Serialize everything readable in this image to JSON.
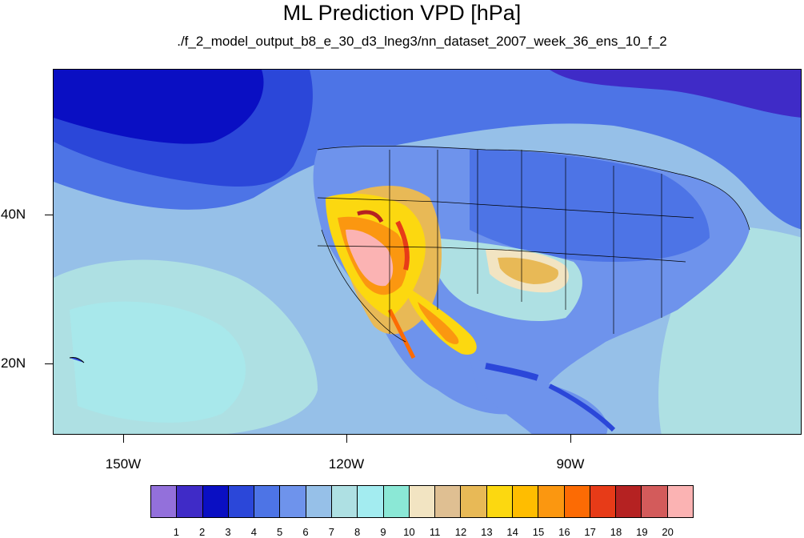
{
  "title": "ML Prediction VPD [hPa]",
  "subtitle": "./f_2_model_output_b8_e_30_d3_lneg3/nn_dataset_2007_week_36_ens_10_f_2",
  "lon_labels": [
    "150W",
    "120W",
    "90W"
  ],
  "lat_labels": [
    "40N",
    "20N"
  ],
  "colorbar": {
    "labels": [
      "1",
      "2",
      "3",
      "4",
      "5",
      "6",
      "7",
      "8",
      "9",
      "10",
      "11",
      "12",
      "13",
      "14",
      "15",
      "16",
      "17",
      "18",
      "19",
      "20"
    ],
    "colors": [
      "#9370db",
      "#3f2bc7",
      "#0a0fc3",
      "#2b47d9",
      "#4d74e6",
      "#6e93ec",
      "#96c0e8",
      "#aee0e3",
      "#a3ecf0",
      "#8be8d6",
      "#f2e4c2",
      "#dfbf92",
      "#e8b956",
      "#fcd810",
      "#ffbd00",
      "#fb9710",
      "#fc6b04",
      "#e73b18",
      "#b52222",
      "#d35b5b",
      "#fbb3b3"
    ]
  }
}
